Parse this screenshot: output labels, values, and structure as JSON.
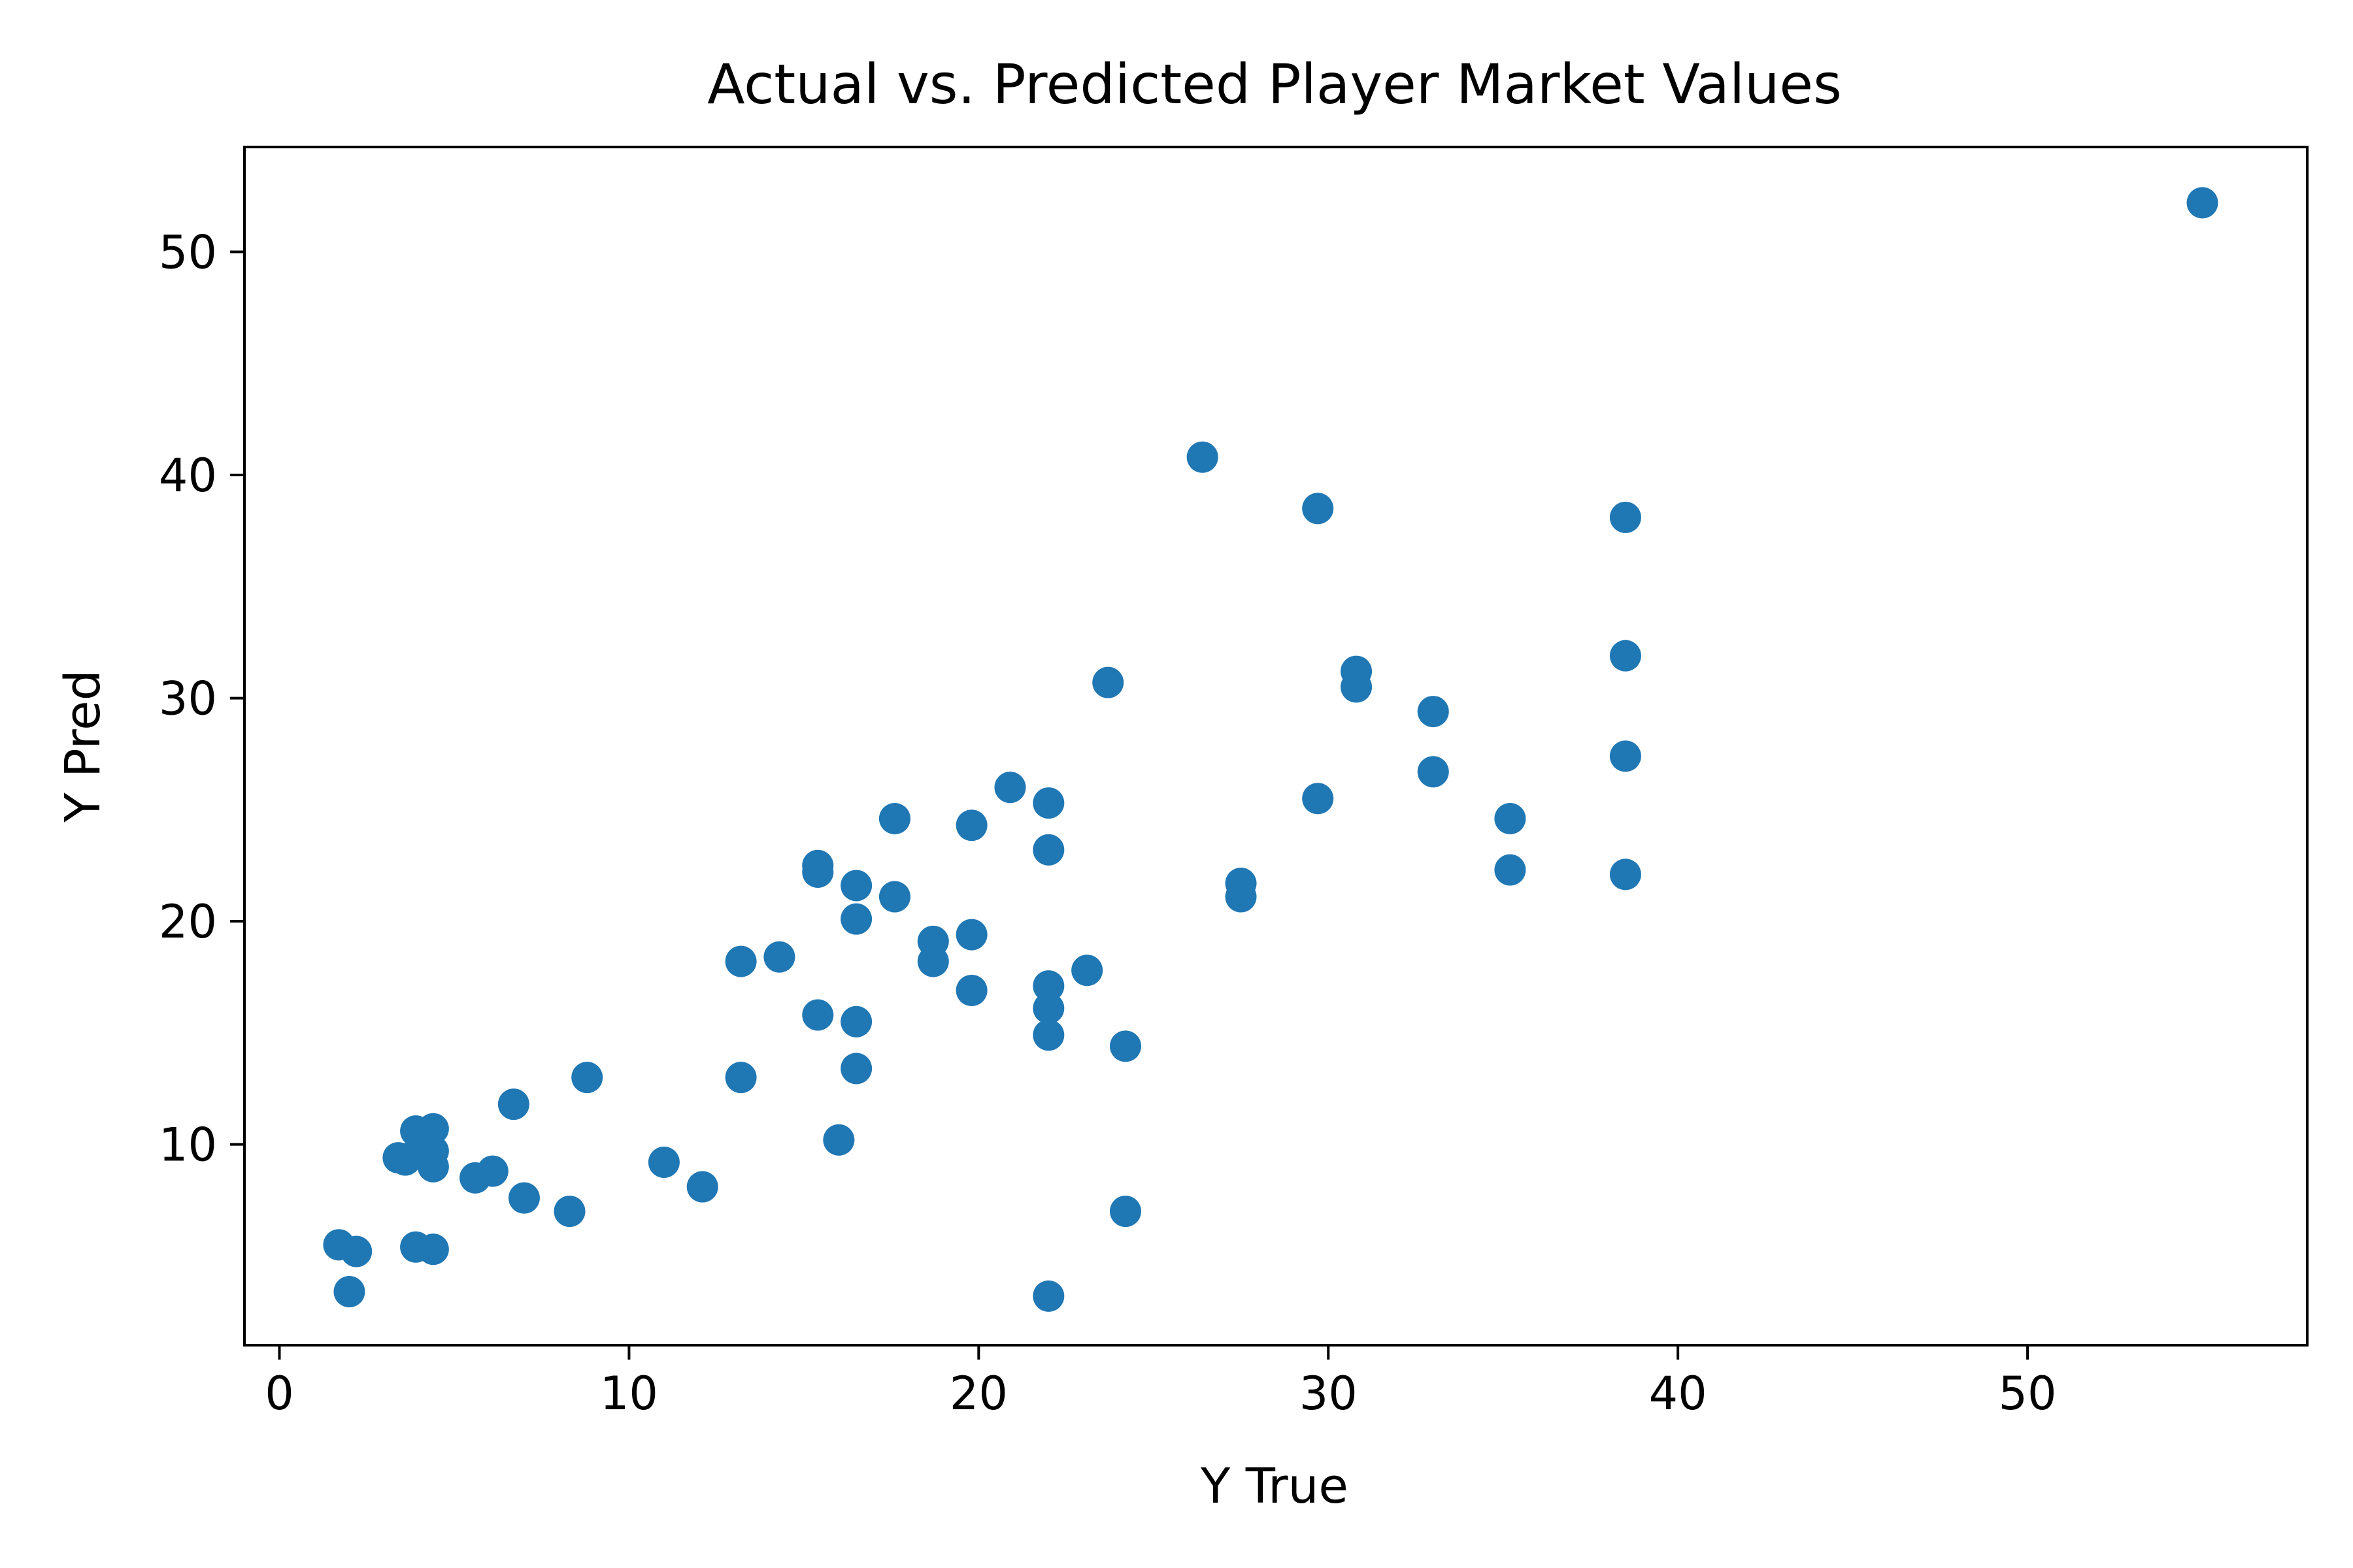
{
  "chart_data": {
    "type": "scatter",
    "title": "Actual vs. Predicted Player Market Values",
    "xlabel": "Y True",
    "ylabel": "Y Pred",
    "xlim": [
      -1,
      58
    ],
    "ylim": [
      1,
      54.7
    ],
    "xticks": [
      0,
      10,
      20,
      30,
      40,
      50
    ],
    "yticks": [
      10,
      20,
      30,
      40,
      50
    ],
    "grid": false,
    "marker_color": "#1f77b4",
    "points": [
      {
        "x": 1.7,
        "y": 5.5
      },
      {
        "x": 2.2,
        "y": 5.2
      },
      {
        "x": 2.0,
        "y": 3.4
      },
      {
        "x": 3.4,
        "y": 9.4
      },
      {
        "x": 3.6,
        "y": 9.3
      },
      {
        "x": 3.9,
        "y": 10.6
      },
      {
        "x": 4.0,
        "y": 9.8
      },
      {
        "x": 4.4,
        "y": 10.7
      },
      {
        "x": 4.4,
        "y": 9.7
      },
      {
        "x": 4.4,
        "y": 9.0
      },
      {
        "x": 3.9,
        "y": 5.4
      },
      {
        "x": 4.4,
        "y": 5.3
      },
      {
        "x": 5.6,
        "y": 8.5
      },
      {
        "x": 6.1,
        "y": 8.8
      },
      {
        "x": 6.7,
        "y": 11.8
      },
      {
        "x": 7.0,
        "y": 7.6
      },
      {
        "x": 8.3,
        "y": 7.0
      },
      {
        "x": 8.8,
        "y": 13.0
      },
      {
        "x": 11.0,
        "y": 9.2
      },
      {
        "x": 12.1,
        "y": 8.1
      },
      {
        "x": 13.2,
        "y": 18.2
      },
      {
        "x": 13.2,
        "y": 13.0
      },
      {
        "x": 14.3,
        "y": 18.4
      },
      {
        "x": 15.4,
        "y": 22.5
      },
      {
        "x": 15.4,
        "y": 22.2
      },
      {
        "x": 15.4,
        "y": 15.8
      },
      {
        "x": 16.0,
        "y": 10.2
      },
      {
        "x": 16.5,
        "y": 21.6
      },
      {
        "x": 16.5,
        "y": 20.1
      },
      {
        "x": 16.5,
        "y": 15.5
      },
      {
        "x": 16.5,
        "y": 13.4
      },
      {
        "x": 17.6,
        "y": 24.6
      },
      {
        "x": 17.6,
        "y": 21.1
      },
      {
        "x": 18.7,
        "y": 19.1
      },
      {
        "x": 18.7,
        "y": 18.2
      },
      {
        "x": 19.8,
        "y": 24.3
      },
      {
        "x": 19.8,
        "y": 19.4
      },
      {
        "x": 19.8,
        "y": 16.9
      },
      {
        "x": 20.9,
        "y": 26.0
      },
      {
        "x": 22.0,
        "y": 25.3
      },
      {
        "x": 22.0,
        "y": 23.2
      },
      {
        "x": 22.0,
        "y": 17.1
      },
      {
        "x": 22.0,
        "y": 16.1
      },
      {
        "x": 22.0,
        "y": 14.9
      },
      {
        "x": 22.0,
        "y": 3.2
      },
      {
        "x": 23.1,
        "y": 17.8
      },
      {
        "x": 23.7,
        "y": 30.7
      },
      {
        "x": 24.2,
        "y": 14.4
      },
      {
        "x": 24.2,
        "y": 7.0
      },
      {
        "x": 26.4,
        "y": 40.8
      },
      {
        "x": 27.5,
        "y": 21.7
      },
      {
        "x": 27.5,
        "y": 21.1
      },
      {
        "x": 29.7,
        "y": 38.5
      },
      {
        "x": 29.7,
        "y": 25.5
      },
      {
        "x": 30.8,
        "y": 31.2
      },
      {
        "x": 30.8,
        "y": 30.5
      },
      {
        "x": 33.0,
        "y": 29.4
      },
      {
        "x": 33.0,
        "y": 26.7
      },
      {
        "x": 35.2,
        "y": 24.6
      },
      {
        "x": 35.2,
        "y": 22.3
      },
      {
        "x": 38.5,
        "y": 38.1
      },
      {
        "x": 38.5,
        "y": 31.9
      },
      {
        "x": 38.5,
        "y": 27.4
      },
      {
        "x": 38.5,
        "y": 22.1
      },
      {
        "x": 55.0,
        "y": 52.2
      }
    ]
  }
}
